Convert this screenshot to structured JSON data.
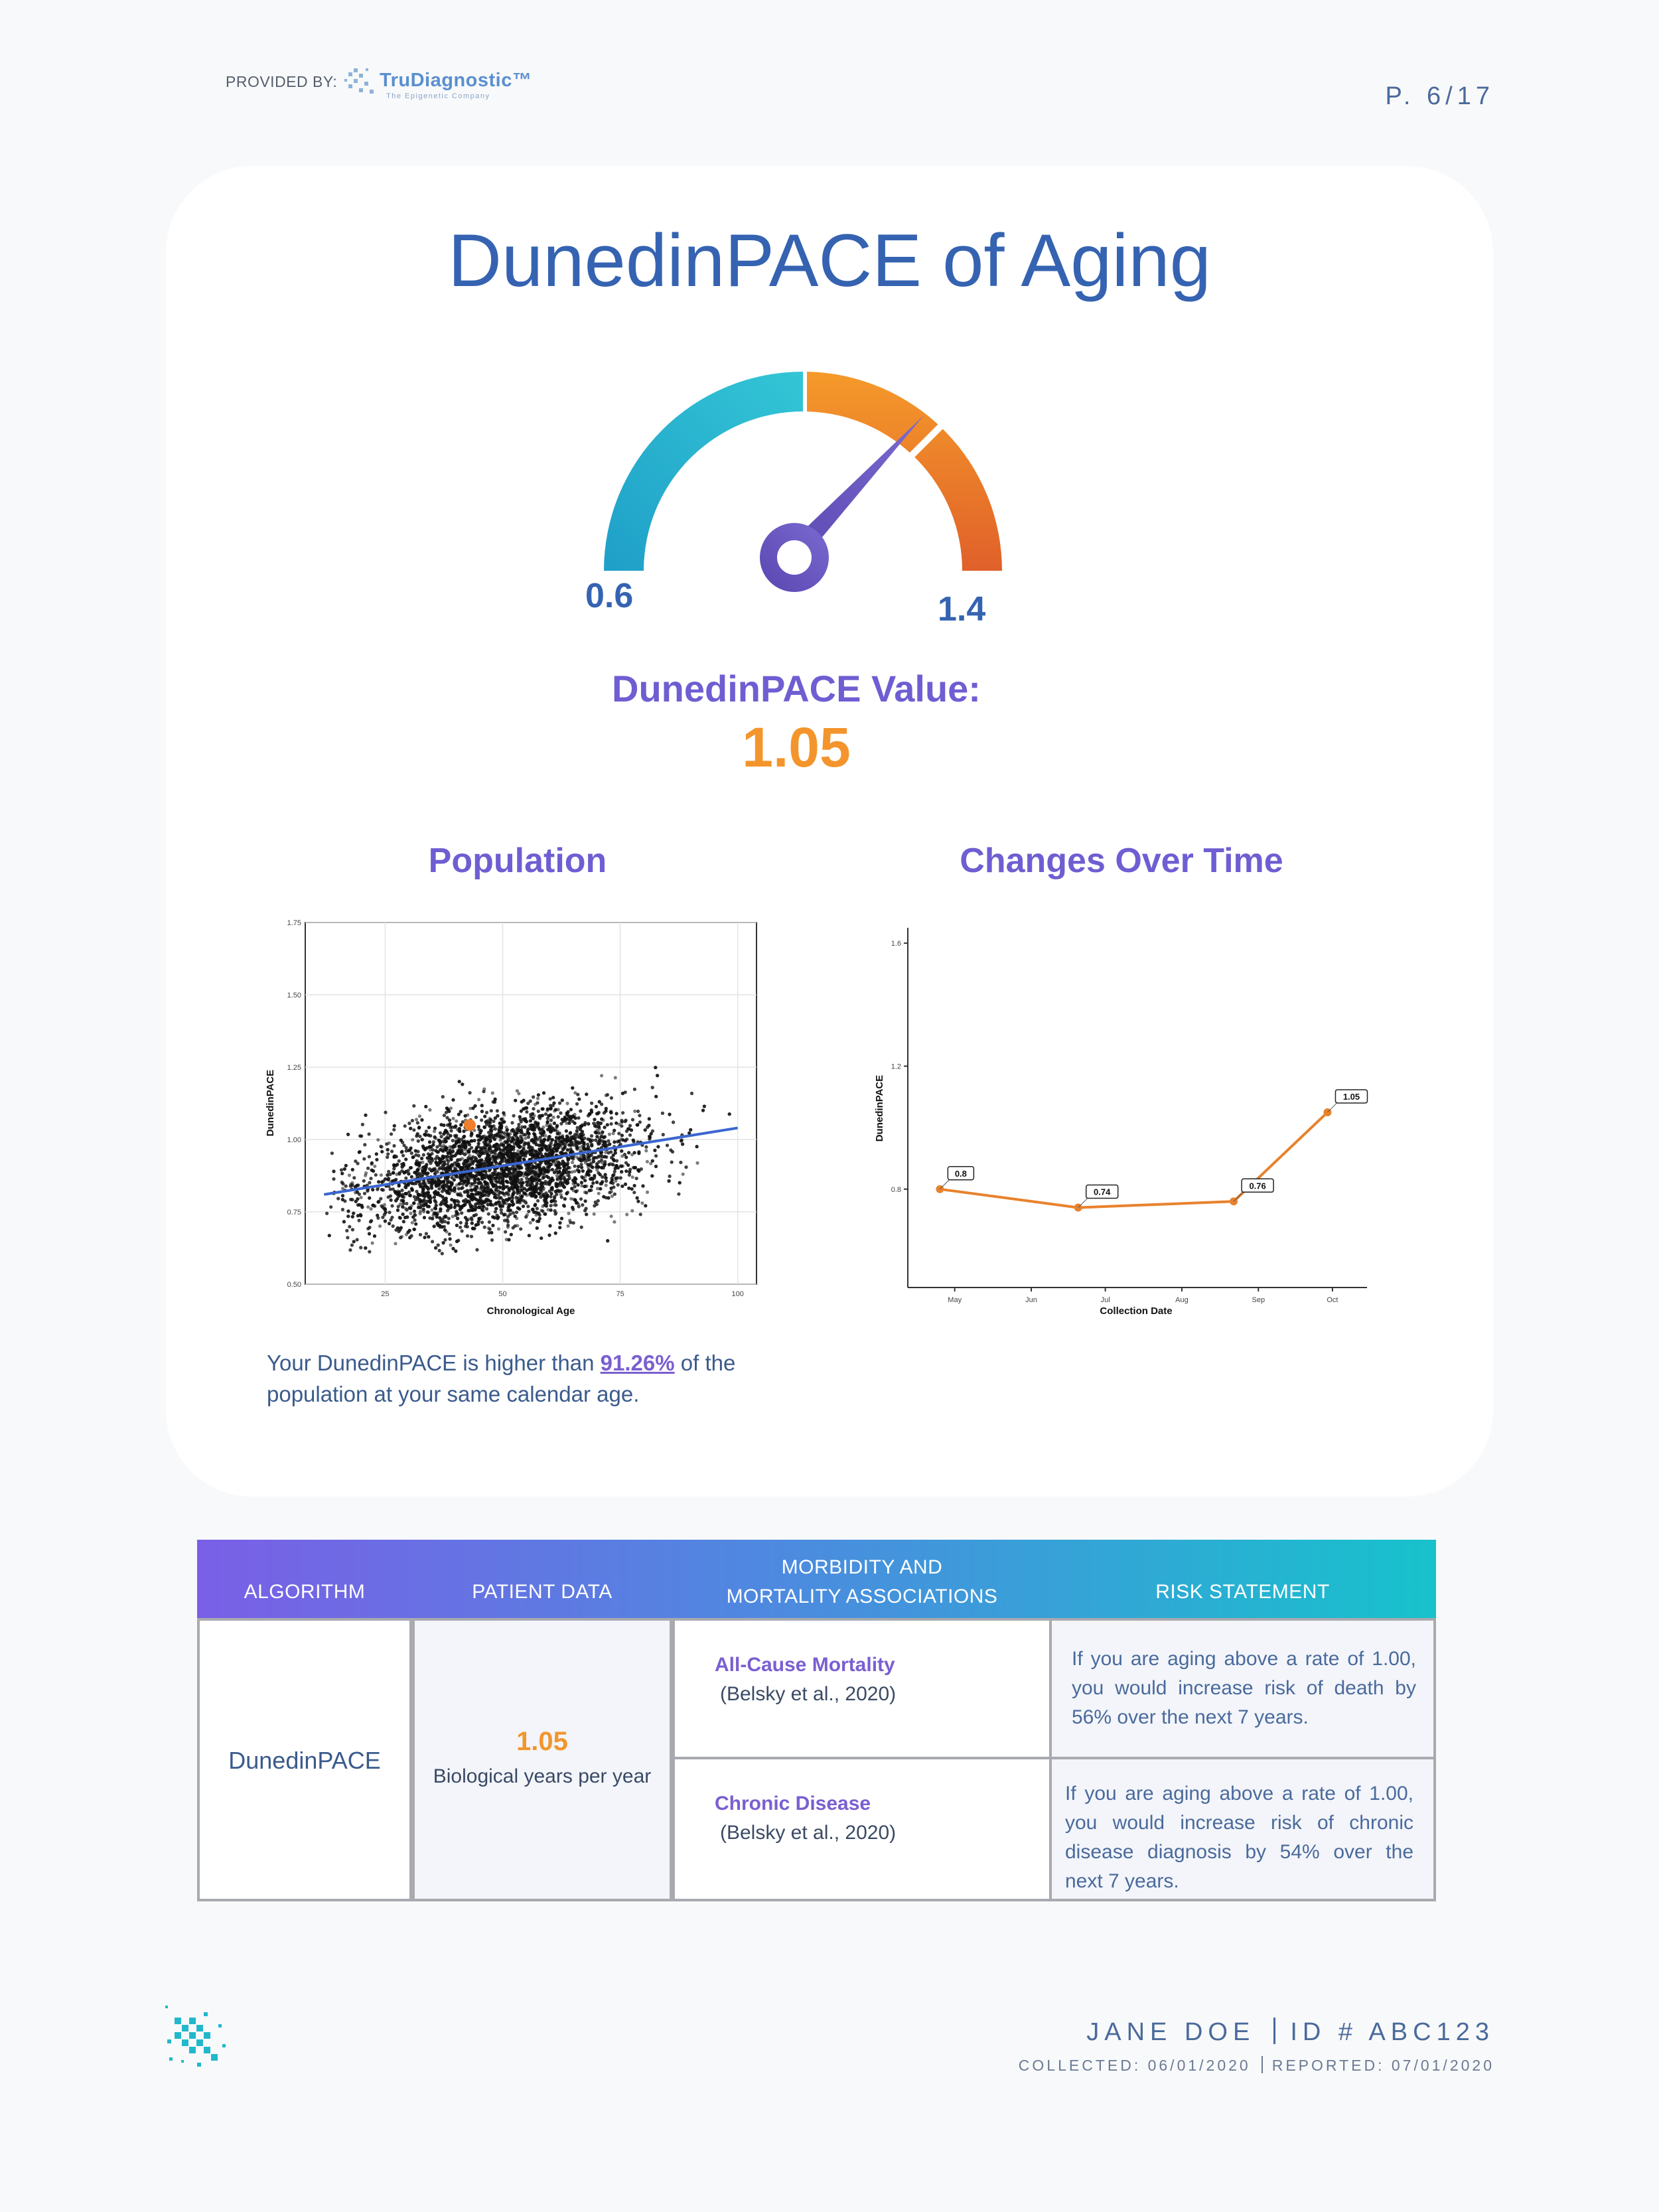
{
  "header": {
    "provided_by": "PROVIDED BY:",
    "brand_name": "TruDiagnostic™",
    "brand_tagline": "The Epigenetic Company",
    "page": "P. 6/17"
  },
  "title": "DunedinPACE of Aging",
  "gauge": {
    "min_label": "0.6",
    "max_label": "1.4",
    "min": 0.6,
    "max": 1.4,
    "value": 1.05,
    "value_label": "DunedinPACE Value:",
    "value_text": "1.05",
    "colors": {
      "low": "#2fbfd0",
      "mid": "#f4962a",
      "high": "#e2602a",
      "needle": "#6a4fb0"
    }
  },
  "population": {
    "heading": "Population",
    "statement_prefix": "Your DunedinPACE is higher than",
    "percent": "91.26%",
    "statement_suffix": "of the population at your same calendar age."
  },
  "changes": {
    "heading": "Changes Over Time"
  },
  "chart_data": [
    {
      "type": "scatter",
      "xlabel": "Chronological Age",
      "ylabel": "DunedinPACE",
      "xlim": [
        8,
        104
      ],
      "ylim": [
        0.5,
        1.75
      ],
      "xticks": [
        "25",
        "50",
        "75",
        "100"
      ],
      "yticks": [
        "0.50",
        "0.75",
        "1.00",
        "1.25",
        "1.50",
        "1.75"
      ],
      "grid": true,
      "series": [
        {
          "kind": "population points (dense cloud, ~8000 samples)",
          "x_center": 50,
          "y_center": 0.9
        },
        {
          "kind": "regression line",
          "x": [
            12,
            100
          ],
          "y": [
            0.81,
            1.04
          ],
          "color": "#3a66d0"
        },
        {
          "kind": "patient",
          "x": [
            43
          ],
          "y": [
            1.05
          ],
          "color": "#f07f2c"
        }
      ]
    },
    {
      "type": "line",
      "xlabel": "Collection Date",
      "ylabel": "DunedinPACE",
      "x_categories": [
        "May",
        "Jun",
        "Jul",
        "Aug",
        "Sep",
        "Oct"
      ],
      "yticks": [
        "0.8",
        "1.2",
        "1.6"
      ],
      "ylim": [
        0.48,
        1.65
      ],
      "x": [
        "2020-04-25",
        "2020-06-20",
        "2020-08-22",
        "2020-09-29"
      ],
      "y": [
        0.8,
        0.74,
        0.76,
        1.05
      ],
      "point_labels": [
        "0.8",
        "0.74",
        "0.76",
        "1.05"
      ],
      "color": "#e8822c"
    }
  ],
  "table": {
    "headers": [
      "ALGORITHM",
      "PATIENT DATA",
      "MORBIDITY AND\nMORTALITY ASSOCIATIONS",
      "RISK STATEMENT"
    ],
    "algorithm": "DunedinPACE",
    "patient_value": "1.05",
    "patient_unit": "Biological years per year",
    "rows": [
      {
        "association": "All-Cause Mortality",
        "citation": "(Belsky et al., 2020)",
        "risk": "If you are aging above a rate of 1.00, you would increase risk of death by 56% over the next 7 years."
      },
      {
        "association": "Chronic Disease",
        "citation": "(Belsky et al., 2020)",
        "risk": "If you are aging above a rate of 1.00, you would increase risk of chronic disease diagnosis by 54% over the next 7 years."
      }
    ]
  },
  "footer": {
    "patient_name": "JANE DOE",
    "patient_id": "ID # ABC123",
    "collected": "COLLECTED: 06/01/2020",
    "reported": "REPORTED: 07/01/2020"
  }
}
